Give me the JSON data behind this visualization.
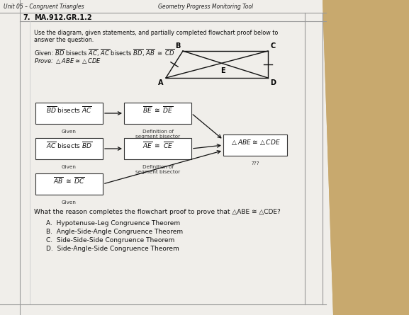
{
  "header_left": "Unit 05 – Congruent Triangles",
  "header_right": "Geometry Progress Monitoring Tool",
  "question_num": "7.",
  "question_code": "MA.912.GR.1.2",
  "instruction": "Use the diagram, given statements, and partially completed flowchart proof below to\nanswer the question.",
  "given_line": "Given: $\\overline{BD}$ bisects $\\overline{AC}$, $\\overline{AC}$ bisects $\\overline{BD}$, $\\overline{AB}$ ≅ $\\overline{CD}$",
  "prove_line": "Prove: △ABE ≅ △CDE",
  "box1_label": "$\\overline{BD}$ bisects $\\overline{AC}$",
  "box1_sub": "Given",
  "box2_label": "$\\overline{BE}$ ≅ $\\overline{DE}$",
  "box2_sub": "Definition of\nsegment bisector",
  "box3_label": "$\\overline{AC}$ bisects $\\overline{BD}$",
  "box3_sub": "Given",
  "box4_label": "$\\overline{AE}$ ≅ $\\overline{CE}$",
  "box4_sub": "Definition of\nsegment bisector",
  "box5_label": "△ABE ≅ △CDE",
  "box5_sub": "???",
  "box6_label": "$\\overline{AB}$ ≅ $\\overline{DC}$",
  "box6_sub": "Given",
  "question_text": "What the reason completes the flowchart proof to prove that △ABE ≅ △CDE?",
  "choices": [
    "A.  Hypotenuse-Leg Congruence Theorem",
    "B.  Angle-Side-Angle Congruence Theorem",
    "C.  Side-Side-Side Congruence Theorem",
    "D.  Side-Angle-Side Congruence Theorem"
  ],
  "desk_color": "#c8a96e",
  "paper_color": "#f0eeea",
  "inner_paper_color": "#ebebeb",
  "box_bg": "#ffffff",
  "box_edge": "#333333",
  "text_color": "#111111",
  "line_color": "#111111",
  "header_line_color": "#555555"
}
